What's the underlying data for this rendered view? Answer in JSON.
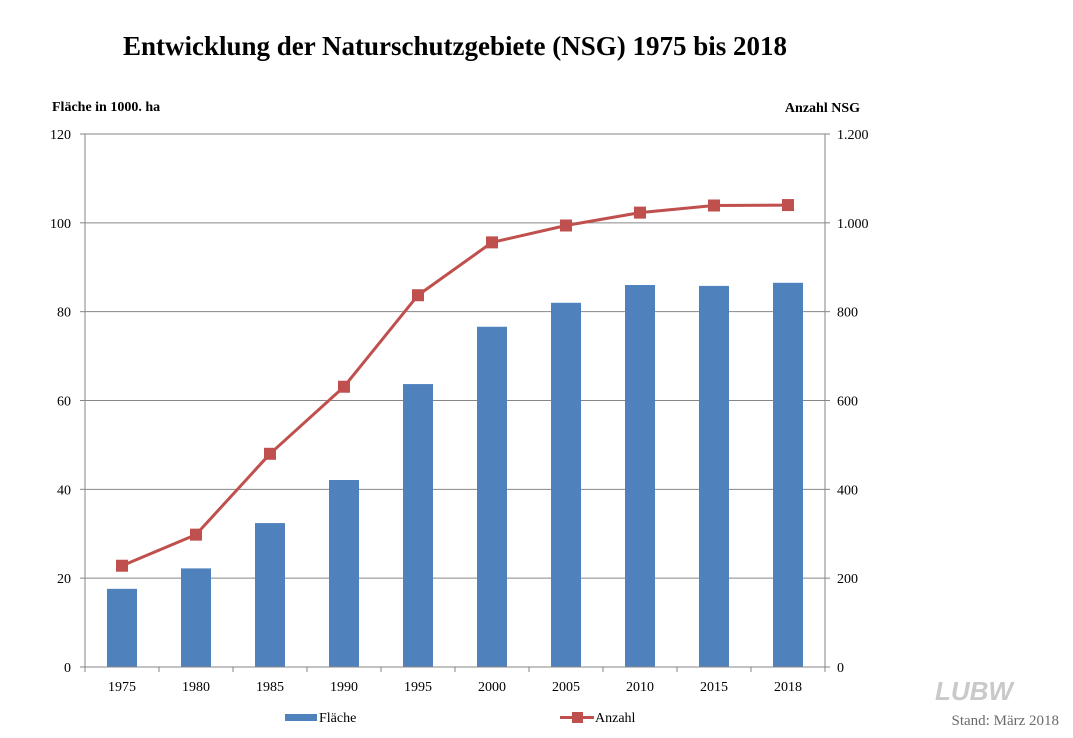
{
  "chart_data": {
    "type": "bar",
    "title": "Entwicklung der Naturschutzgebiete (NSG) 1975 bis 2018",
    "xlabel": "",
    "ylabel": "Fläche in 1000. ha",
    "ylabel_right": "Anzahl  NSG",
    "categories": [
      "1975",
      "1980",
      "1985",
      "1990",
      "1995",
      "2000",
      "2005",
      "2010",
      "2015",
      "2018"
    ],
    "series": [
      {
        "name": "Fläche",
        "type": "bar",
        "axis": "left",
        "color": "#4F81BD",
        "values": [
          17.6,
          22.2,
          32.4,
          42.1,
          63.7,
          76.6,
          82.0,
          86.0,
          85.8,
          86.5
        ]
      },
      {
        "name": "Anzahl",
        "type": "line",
        "axis": "right",
        "color": "#C0504D",
        "marker": "square",
        "values": [
          228,
          298,
          480,
          631,
          837,
          956,
          994,
          1023,
          1039,
          1040
        ]
      }
    ],
    "ylim": [
      0,
      120
    ],
    "yticks": [
      "0",
      "20",
      "40",
      "60",
      "80",
      "100",
      "120"
    ],
    "ylim_right": [
      0,
      1200
    ],
    "yticks_right": [
      "0",
      "200",
      "400",
      "600",
      "800",
      "1.000",
      "1.200"
    ],
    "grid": true,
    "legend_position": "bottom"
  },
  "footer": {
    "logo": "LUBW",
    "stand": "Stand: März 2018"
  },
  "colors": {
    "grid": "#868686",
    "bar": "#4F81BD",
    "line": "#C0504D"
  }
}
